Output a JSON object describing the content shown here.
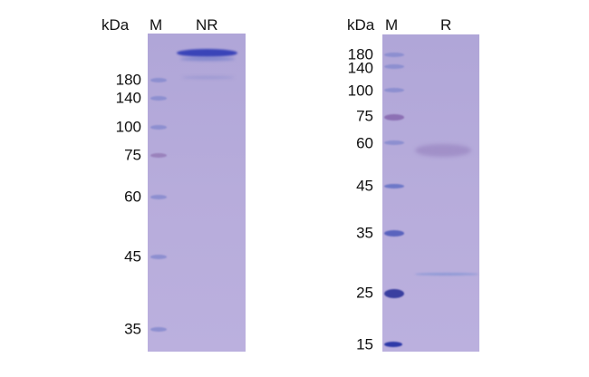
{
  "left_panel": {
    "unit_label": "kDa",
    "marker_lane_label": "M",
    "sample_lane_label": "NR",
    "marker_sizes": [
      "180",
      "140",
      "100",
      "75",
      "60",
      "45",
      "35"
    ]
  },
  "right_panel": {
    "unit_label": "kDa",
    "marker_lane_label": "M",
    "sample_lane_label": "R",
    "marker_sizes": [
      "180",
      "140",
      "100",
      "75",
      "60",
      "45",
      "35",
      "25",
      "15"
    ]
  },
  "colors": {
    "gel": "#b5aada",
    "band": "#3a44b8",
    "marker": "#8d8fd0"
  }
}
